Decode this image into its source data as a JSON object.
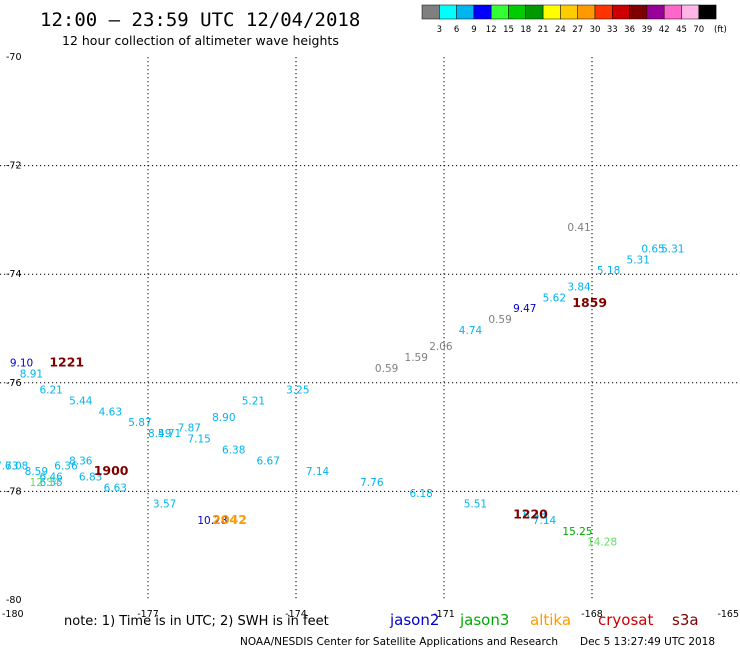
{
  "header": {
    "title": "12:00 – 23:59 UTC 12/04/2018",
    "subtitle": "12 hour collection of altimeter wave heights"
  },
  "colorbar": {
    "unit": "(ft)",
    "labels": [
      "3",
      "6",
      "9",
      "12",
      "15",
      "18",
      "21",
      "24",
      "27",
      "30",
      "33",
      "36",
      "39",
      "42",
      "45",
      "70"
    ],
    "colors": [
      "#7f7f7f",
      "#00ffff",
      "#00b4f0",
      "#0000ff",
      "#33ff33",
      "#00cc00",
      "#009900",
      "#ffff00",
      "#ffcc00",
      "#ff9900",
      "#ff3300",
      "#cc0000",
      "#800000",
      "#990099",
      "#ff66cc",
      "#ffb6e6",
      "#000000"
    ]
  },
  "chart_data": {
    "type": "scatter",
    "xlim": [
      -180,
      -165
    ],
    "ylim": [
      -80,
      -70
    ],
    "x_ticks": [
      "-177",
      "-174",
      "-171",
      "-168",
      "-165"
    ],
    "y_ticks": [
      "-72",
      "-74",
      "-76",
      "-78",
      "-80"
    ],
    "corner_labels": {
      "top_left": "-70",
      "bottom_left": "-180"
    },
    "points": [
      {
        "x": -179.8,
        "y": -75.7,
        "label": "9.10",
        "color": "#0000cc"
      },
      {
        "x": -179.6,
        "y": -75.9,
        "label": "8.91",
        "color": "#00b4f0"
      },
      {
        "x": -179.2,
        "y": -76.2,
        "label": "6.21",
        "color": "#00b4f0"
      },
      {
        "x": -178.6,
        "y": -76.4,
        "label": "5.44",
        "color": "#00b4f0"
      },
      {
        "x": -178.0,
        "y": -76.6,
        "label": "4.63",
        "color": "#00b4f0"
      },
      {
        "x": -177.4,
        "y": -76.8,
        "label": "5.87",
        "color": "#00b4f0"
      },
      {
        "x": -177.0,
        "y": -77.0,
        "label": "8.49",
        "color": "#00b4f0"
      },
      {
        "x": -176.8,
        "y": -77.0,
        "label": "5.71",
        "color": "#00b4f0"
      },
      {
        "x": -176.4,
        "y": -76.9,
        "label": "7.87",
        "color": "#00b4f0"
      },
      {
        "x": -176.2,
        "y": -77.1,
        "label": "7.15",
        "color": "#00b4f0"
      },
      {
        "x": -175.7,
        "y": -76.7,
        "label": "8.90",
        "color": "#00b4f0"
      },
      {
        "x": -175.5,
        "y": -77.3,
        "label": "6.38",
        "color": "#00b4f0"
      },
      {
        "x": -175.1,
        "y": -76.4,
        "label": "5.21",
        "color": "#00b4f0"
      },
      {
        "x": -174.2,
        "y": -76.2,
        "label": "3.25",
        "color": "#00b4f0"
      },
      {
        "x": -174.8,
        "y": -77.5,
        "label": "6.67",
        "color": "#00b4f0"
      },
      {
        "x": -173.8,
        "y": -77.7,
        "label": "7.14",
        "color": "#00b4f0"
      },
      {
        "x": -172.7,
        "y": -77.9,
        "label": "7.76",
        "color": "#00b4f0"
      },
      {
        "x": -171.7,
        "y": -78.1,
        "label": "6.18",
        "color": "#00b4f0"
      },
      {
        "x": -170.6,
        "y": -78.3,
        "label": "5.51",
        "color": "#00b4f0"
      },
      {
        "x": -169.4,
        "y": -78.5,
        "label": "6.43",
        "color": "#00b4f0"
      },
      {
        "x": -169.2,
        "y": -78.6,
        "label": "7.14",
        "color": "#00b4f0"
      },
      {
        "x": -178.4,
        "y": -77.8,
        "label": "6.83",
        "color": "#00b4f0"
      },
      {
        "x": -178.9,
        "y": -77.6,
        "label": "6.36",
        "color": "#00b4f0"
      },
      {
        "x": -177.9,
        "y": -78.0,
        "label": "6.63",
        "color": "#00b4f0"
      },
      {
        "x": -176.9,
        "y": -78.3,
        "label": "3.57",
        "color": "#00b4f0"
      },
      {
        "x": -179.9,
        "y": -77.6,
        "label": "6.08",
        "color": "#00b4f0"
      },
      {
        "x": -179.2,
        "y": -77.8,
        "label": "6.46",
        "color": "#00b4f0"
      },
      {
        "x": -179.2,
        "y": -77.9,
        "label": "6.55",
        "color": "#00b4f0"
      },
      {
        "x": -180.1,
        "y": -77.6,
        "label": "7.73",
        "color": "#00b4f0"
      },
      {
        "x": -179.5,
        "y": -77.7,
        "label": "8.59",
        "color": "#00b4f0"
      },
      {
        "x": -179.4,
        "y": -77.9,
        "label": "12.34",
        "color": "#66dd66"
      },
      {
        "x": -178.6,
        "y": -77.5,
        "label": "8.36",
        "color": "#00b4f0"
      },
      {
        "x": -176.0,
        "y": -78.6,
        "label": "10.28",
        "color": "#0000cc"
      },
      {
        "x": -168.6,
        "y": -78.8,
        "label": "15.25",
        "color": "#00aa00"
      },
      {
        "x": -168.1,
        "y": -79.0,
        "label": "14.28",
        "color": "#66dd66"
      },
      {
        "x": -172.4,
        "y": -75.8,
        "label": "0.59",
        "color": "#7f7f7f"
      },
      {
        "x": -171.8,
        "y": -75.6,
        "label": "1.59",
        "color": "#7f7f7f"
      },
      {
        "x": -171.3,
        "y": -75.4,
        "label": "2.06",
        "color": "#7f7f7f"
      },
      {
        "x": -170.7,
        "y": -75.1,
        "label": "4.74",
        "color": "#00b4f0"
      },
      {
        "x": -170.1,
        "y": -74.9,
        "label": "0.59",
        "color": "#7f7f7f"
      },
      {
        "x": -169.6,
        "y": -74.7,
        "label": "9.47",
        "color": "#0000cc"
      },
      {
        "x": -169.0,
        "y": -74.5,
        "label": "5.62",
        "color": "#00b4f0"
      },
      {
        "x": -168.5,
        "y": -74.3,
        "label": "3.84",
        "color": "#00b4f0"
      },
      {
        "x": -167.9,
        "y": -74.0,
        "label": "5.18",
        "color": "#00b4f0"
      },
      {
        "x": -167.3,
        "y": -73.8,
        "label": "5.31",
        "color": "#00b4f0"
      },
      {
        "x": -167.0,
        "y": -73.6,
        "label": "0.65",
        "color": "#00b4f0"
      },
      {
        "x": -166.6,
        "y": -73.6,
        "label": "5.31",
        "color": "#00b4f0"
      },
      {
        "x": -168.5,
        "y": -73.2,
        "label": "0.41",
        "color": "#7f7f7f"
      }
    ],
    "time_labels": [
      {
        "x": -179.0,
        "y": -75.7,
        "label": "1221",
        "color": "#800000"
      },
      {
        "x": -178.1,
        "y": -77.7,
        "label": "1900",
        "color": "#800000"
      },
      {
        "x": -175.7,
        "y": -78.6,
        "label": "2042",
        "color": "#ff9900"
      },
      {
        "x": -168.4,
        "y": -74.6,
        "label": "1859",
        "color": "#800000"
      },
      {
        "x": -169.6,
        "y": -78.5,
        "label": "1220",
        "color": "#800000"
      }
    ]
  },
  "footer": {
    "note": "note: 1) Time is in UTC; 2) SWH is in feet",
    "legend": [
      {
        "label": "jason2",
        "color": "#0000cc"
      },
      {
        "label": "jason3",
        "color": "#00aa00"
      },
      {
        "label": "altika",
        "color": "#ff9900"
      },
      {
        "label": "cryosat",
        "color": "#cc0000"
      },
      {
        "label": "s3a",
        "color": "#800000"
      }
    ],
    "credit": "NOAA/NESDIS Center for Satellite Applications and Research",
    "timestamp": "Dec  5 13:27:49 UTC 2018"
  }
}
